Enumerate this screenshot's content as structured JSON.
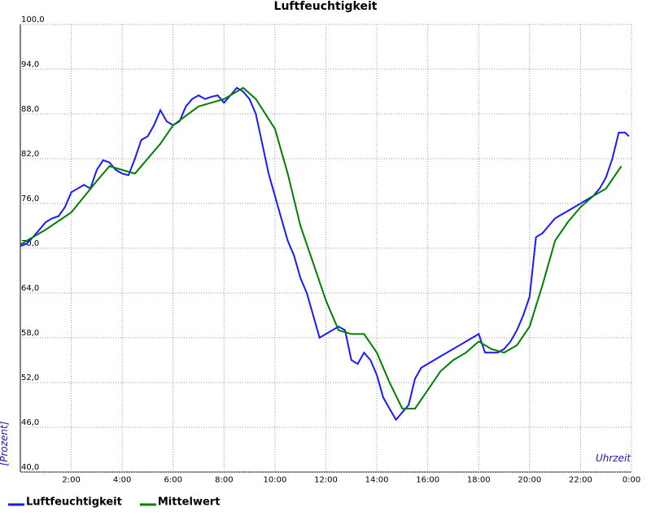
{
  "chart_data": {
    "type": "line",
    "title": "Luftfeuchtigkeit",
    "y_label": "[Prozent]",
    "x_label": "Uhrzeit",
    "xlim": [
      0,
      24
    ],
    "ylim": [
      40,
      100
    ],
    "grid": true,
    "legend": "bottom-left",
    "xticks": [
      {
        "value": 2,
        "label": "2:00"
      },
      {
        "value": 4,
        "label": "4:00"
      },
      {
        "value": 6,
        "label": "6:00"
      },
      {
        "value": 8,
        "label": "8:00"
      },
      {
        "value": 10,
        "label": "10:00"
      },
      {
        "value": 12,
        "label": "12:00"
      },
      {
        "value": 14,
        "label": "14:00"
      },
      {
        "value": 16,
        "label": "16:00"
      },
      {
        "value": 18,
        "label": "18:00"
      },
      {
        "value": 20,
        "label": "20:00"
      },
      {
        "value": 22,
        "label": "22:00"
      },
      {
        "value": 24,
        "label": "0:00"
      }
    ],
    "yticks": [
      {
        "value": 40,
        "label": "40,0"
      },
      {
        "value": 46,
        "label": "46,0"
      },
      {
        "value": 52,
        "label": "52,0"
      },
      {
        "value": 58,
        "label": "58,0"
      },
      {
        "value": 64,
        "label": "64,0"
      },
      {
        "value": 70,
        "label": "70,0"
      },
      {
        "value": 76,
        "label": "76,0"
      },
      {
        "value": 82,
        "label": "82,0"
      },
      {
        "value": 88,
        "label": "88,0"
      },
      {
        "value": 94,
        "label": "94,0"
      },
      {
        "value": 100,
        "label": "100,0"
      }
    ],
    "series": [
      {
        "name": "Luftfeuchtigkeit",
        "color": "#1a1aff",
        "x": [
          0,
          0.25,
          0.5,
          0.75,
          1,
          1.25,
          1.5,
          1.75,
          2,
          2.25,
          2.5,
          2.75,
          3,
          3.25,
          3.5,
          3.75,
          4,
          4.25,
          4.5,
          4.75,
          5,
          5.25,
          5.5,
          5.75,
          6,
          6.25,
          6.5,
          6.75,
          7,
          7.25,
          7.5,
          7.75,
          8,
          8.25,
          8.5,
          8.75,
          9,
          9.25,
          9.5,
          9.75,
          10,
          10.25,
          10.5,
          10.75,
          11,
          11.25,
          11.5,
          11.75,
          12,
          12.25,
          12.5,
          12.75,
          13,
          13.25,
          13.5,
          13.75,
          14,
          14.25,
          14.5,
          14.75,
          15,
          15.25,
          15.5,
          15.75,
          16,
          16.25,
          16.5,
          16.75,
          17,
          17.25,
          17.5,
          17.75,
          18,
          18.25,
          18.5,
          18.75,
          19,
          19.25,
          19.5,
          19.75,
          20,
          20.25,
          20.5,
          20.75,
          21,
          21.25,
          21.5,
          21.75,
          22,
          22.25,
          22.5,
          22.75,
          23,
          23.25,
          23.5,
          23.75,
          23.9
        ],
        "values": [
          70.3,
          70.6,
          71.5,
          72.5,
          73.5,
          74.0,
          74.3,
          75.5,
          77.5,
          78.0,
          78.5,
          78.0,
          80.5,
          81.8,
          81.5,
          80.5,
          80.0,
          79.8,
          82.0,
          84.5,
          85.0,
          86.5,
          88.5,
          87.0,
          86.5,
          87.0,
          89.0,
          90.0,
          90.5,
          90.0,
          90.3,
          90.5,
          89.5,
          90.5,
          91.5,
          91.0,
          90.0,
          88.0,
          84.0,
          80.0,
          77.0,
          74.0,
          71.0,
          69.0,
          66.0,
          64.0,
          61.0,
          58.0,
          58.5,
          59.0,
          59.5,
          59.0,
          55.0,
          54.5,
          56.0,
          55.0,
          53.0,
          50.0,
          48.5,
          47.0,
          48.0,
          49.0,
          52.5,
          54.0,
          54.5,
          55.0,
          55.5,
          56.0,
          56.5,
          57.0,
          57.5,
          58.0,
          58.5,
          56.0,
          56.0,
          56.0,
          56.5,
          57.5,
          59.0,
          61.0,
          63.5,
          71.5,
          72.0,
          73.0,
          74.0,
          74.5,
          75.0,
          75.5,
          76.0,
          76.5,
          77.0,
          78.0,
          79.5,
          82.0,
          85.5,
          85.5,
          85.0
        ]
      },
      {
        "name": "Mittelwert",
        "color": "#008000",
        "x": [
          0,
          1,
          2,
          3,
          3.5,
          4.5,
          5.5,
          6,
          7,
          8,
          8.75,
          9.25,
          10,
          10.5,
          11,
          11.5,
          12,
          12.5,
          13,
          13.5,
          14,
          14.5,
          15,
          15.5,
          16,
          16.5,
          17,
          17.5,
          18,
          18.5,
          19,
          19.5,
          20,
          20.5,
          21,
          21.5,
          22,
          22.5,
          23,
          23.6
        ],
        "values": [
          70.5,
          72.5,
          74.8,
          79,
          81,
          80,
          84,
          86.5,
          89,
          90,
          91.5,
          90,
          86,
          80,
          73,
          68,
          63,
          59,
          58.5,
          58.5,
          56,
          52,
          48.5,
          48.5,
          51,
          53.5,
          55,
          56,
          57.5,
          56.5,
          56,
          57,
          59.5,
          65,
          71,
          73.5,
          75.5,
          77,
          78,
          81
        ]
      }
    ]
  }
}
